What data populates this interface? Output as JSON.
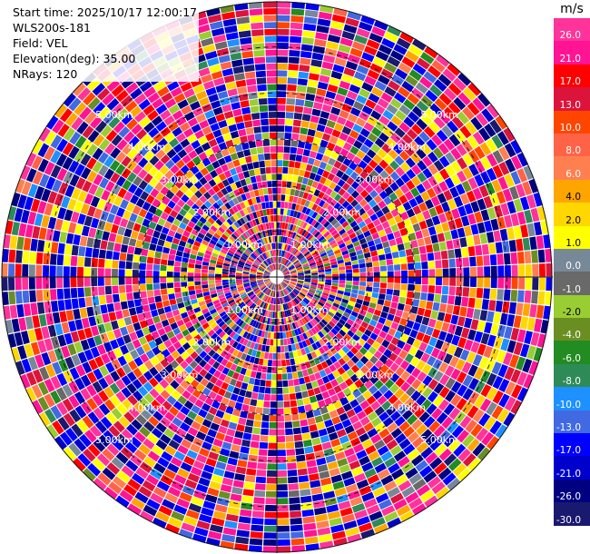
{
  "info": {
    "start_time": "Start time: 2025/10/17 12:00:17",
    "site": "WLS200s-181",
    "field": "Field: VEL",
    "elevation": "Elevation(deg): 35.00",
    "nrays": "NRays: 120"
  },
  "colorbar": {
    "unit": "m/s",
    "levels": [
      {
        "label": "26.0",
        "color": "#ff3399"
      },
      {
        "label": "21.0",
        "color": "#ff1493"
      },
      {
        "label": "17.0",
        "color": "#ff0000"
      },
      {
        "label": "13.0",
        "color": "#dc143c"
      },
      {
        "label": "10.0",
        "color": "#ff4500"
      },
      {
        "label": "8.0",
        "color": "#ff6347"
      },
      {
        "label": "6.0",
        "color": "#ff7f50"
      },
      {
        "label": "4.0",
        "color": "#ffa500"
      },
      {
        "label": "2.0",
        "color": "#ffd700"
      },
      {
        "label": "1.0",
        "color": "#ffff00"
      },
      {
        "label": "0.0",
        "color": "#778899"
      },
      {
        "label": "-1.0",
        "color": "#696969"
      },
      {
        "label": "-2.0",
        "color": "#9acd32"
      },
      {
        "label": "-4.0",
        "color": "#6b8e23"
      },
      {
        "label": "-6.0",
        "color": "#228b22"
      },
      {
        "label": "-8.0",
        "color": "#2e8b57"
      },
      {
        "label": "-10.0",
        "color": "#1e90ff"
      },
      {
        "label": "-13.0",
        "color": "#4169e1"
      },
      {
        "label": "-17.0",
        "color": "#0000ff"
      },
      {
        "label": "-21.0",
        "color": "#0000cd"
      },
      {
        "label": "-26.0",
        "color": "#000080"
      },
      {
        "label": "-30.0",
        "color": "#191970"
      }
    ]
  },
  "chart_data": {
    "type": "heatmap",
    "projection": "polar-ppi",
    "field": "VEL",
    "units": "m/s",
    "n_rays": 120,
    "n_gates": 40,
    "max_range_km": 6.0,
    "range_ring_labels": [
      "1.00km",
      "2.00km",
      "3.00km",
      "4.00km",
      "5.00km"
    ],
    "note_values": "gate-by-gate velocity values are too dense to read individually; rendered as a pseudo-random field",
    "grid": true
  }
}
